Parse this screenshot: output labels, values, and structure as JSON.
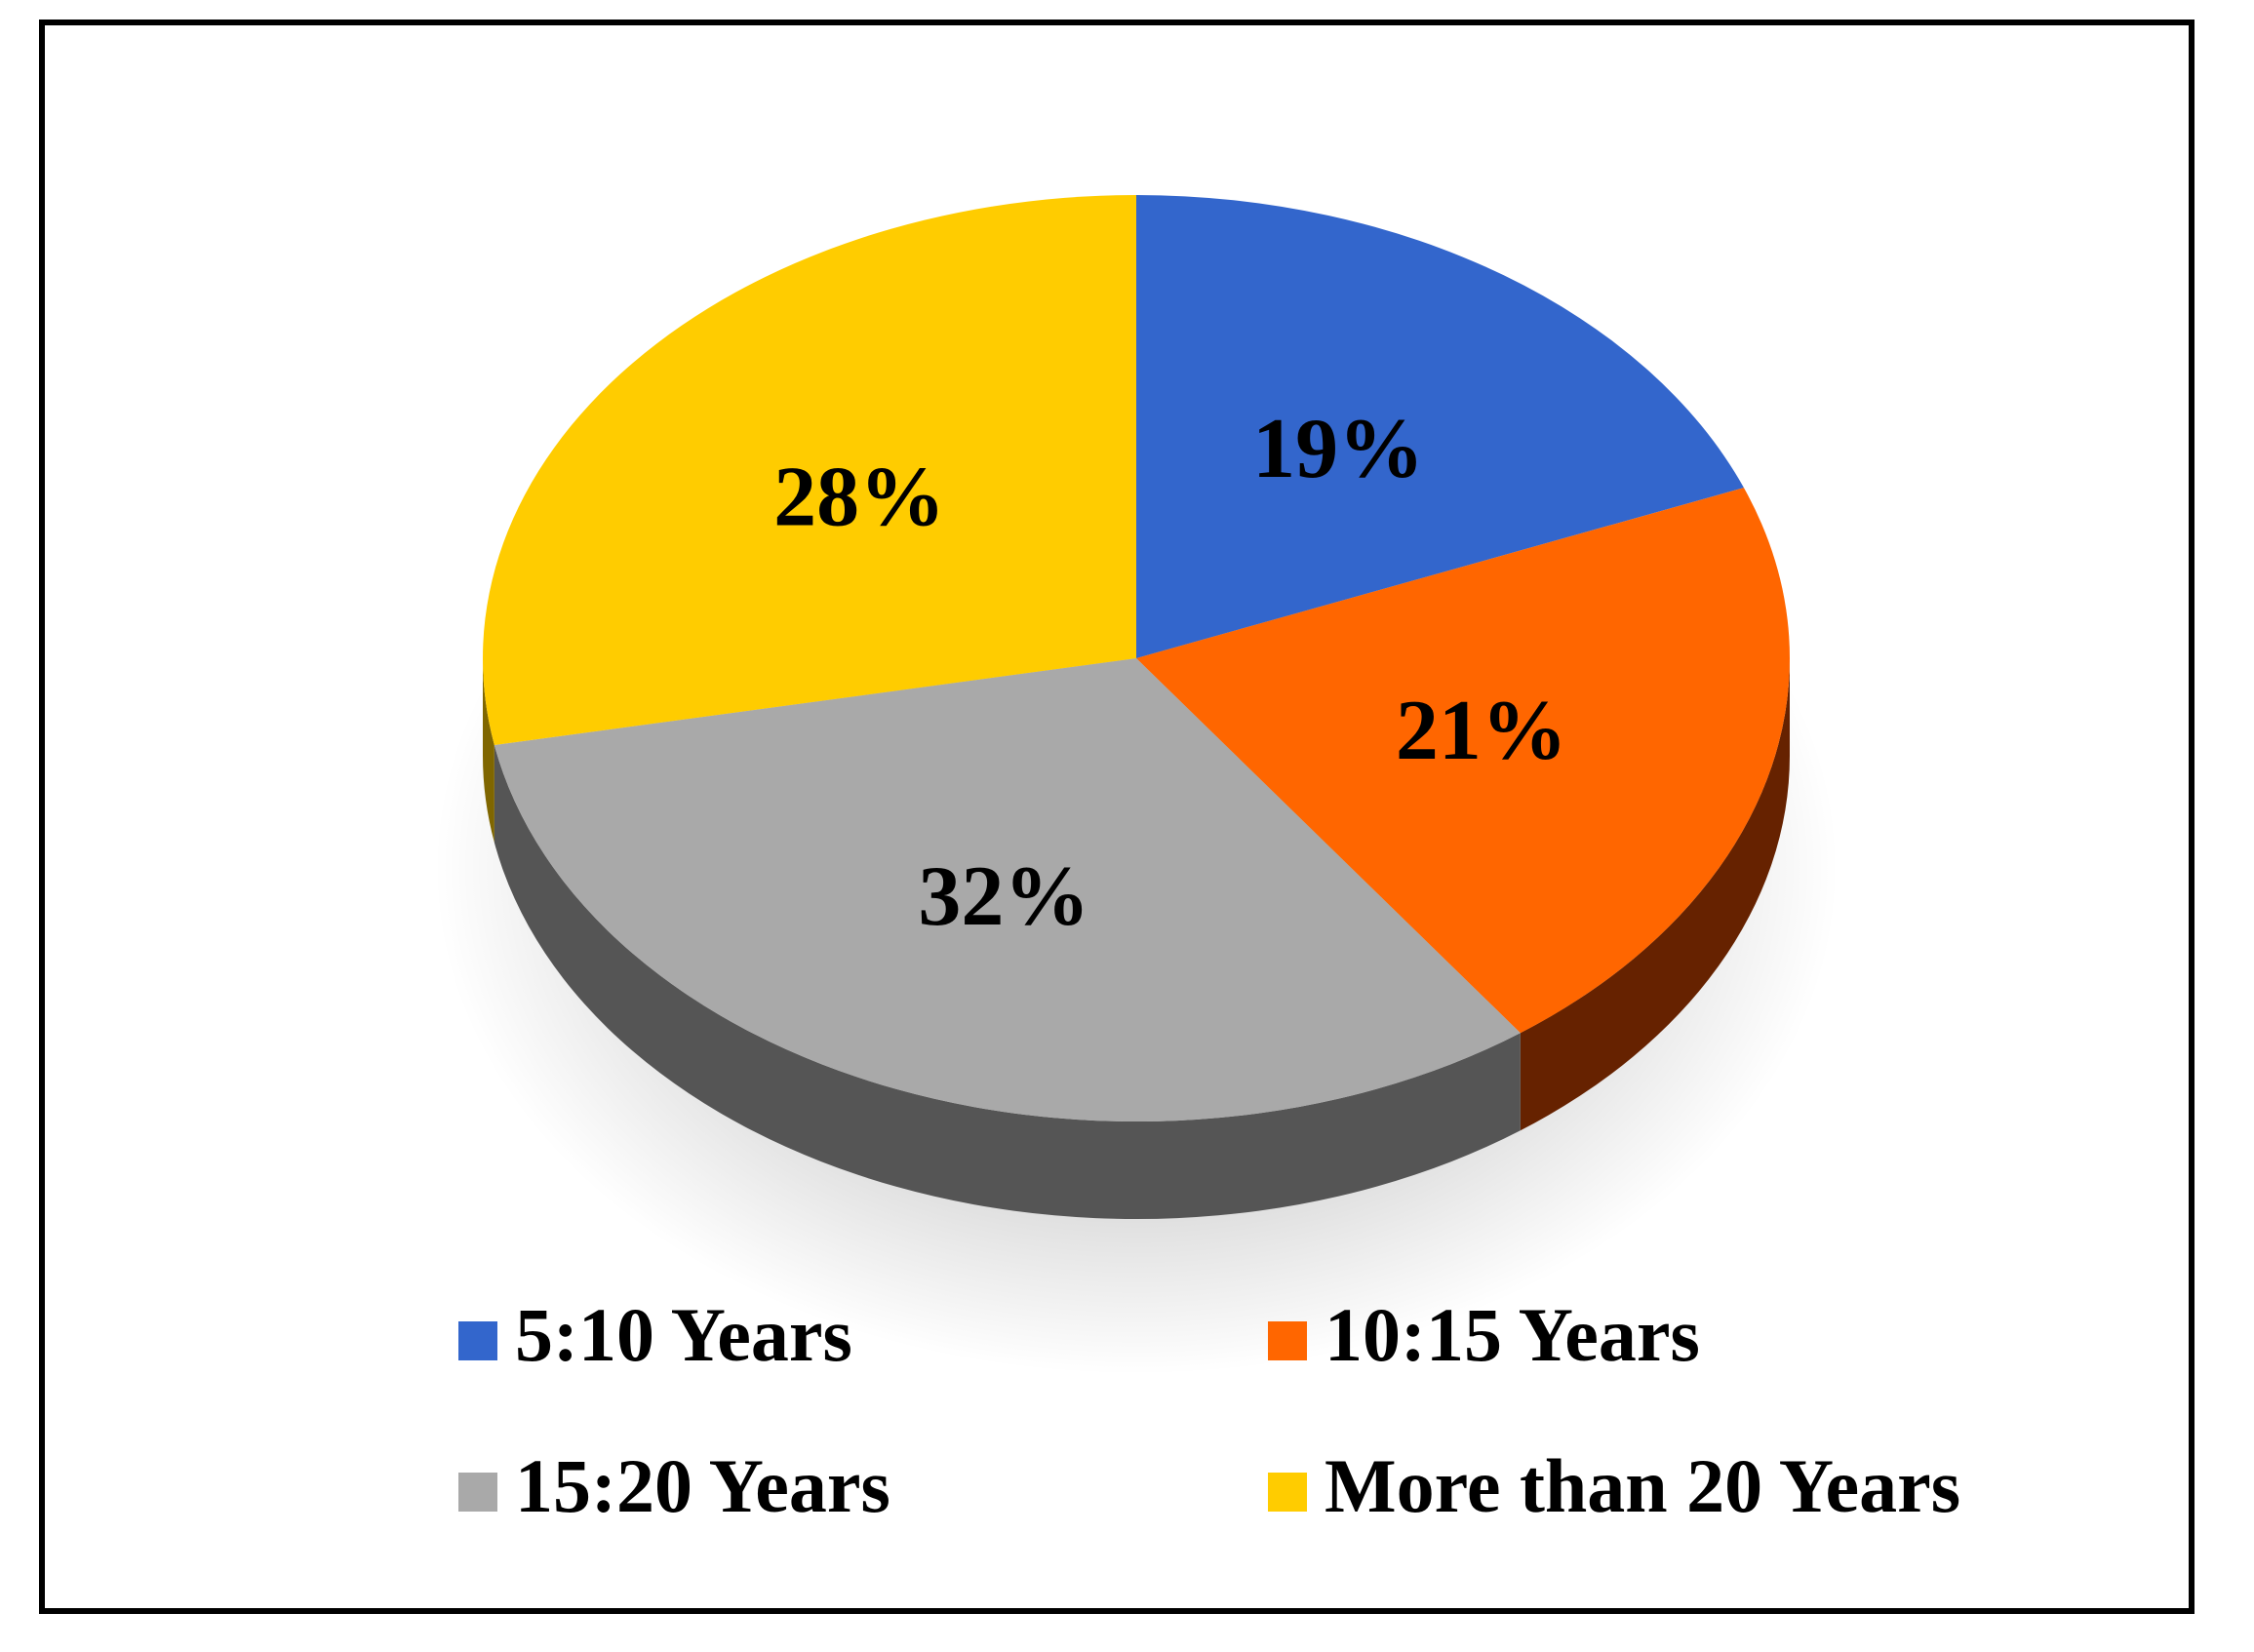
{
  "chart_data": {
    "type": "pie",
    "title": "",
    "style": "3d",
    "legend_position": "bottom",
    "slices": [
      {
        "label": "5:10 Years",
        "value": 19,
        "display": "19%",
        "color": "#3366CC",
        "side": "#1f3f80"
      },
      {
        "label": "10:15 Years",
        "value": 21,
        "display": "21%",
        "color": "#FF6600",
        "side": "#662200"
      },
      {
        "label": "15:20 Years",
        "value": 32,
        "display": "32%",
        "color": "#A9A9A9",
        "side": "#555555"
      },
      {
        "label": "More than 20 Years",
        "value": 28,
        "display": "28%",
        "color": "#FFCC00",
        "side": "#7f6600"
      }
    ]
  }
}
